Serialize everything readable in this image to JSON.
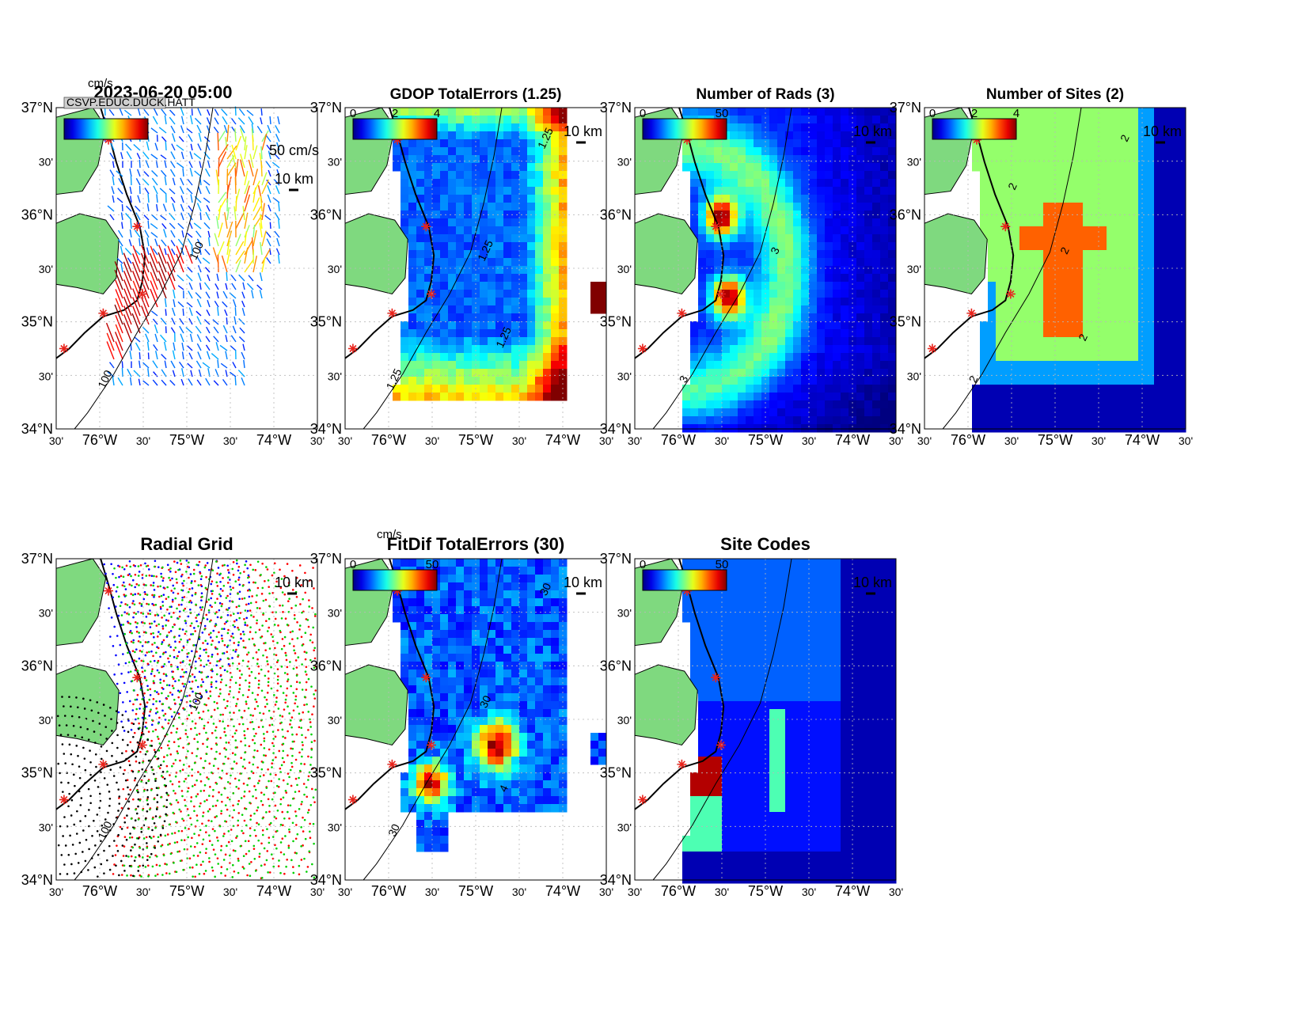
{
  "figure": {
    "panels": [
      {
        "id": "currents",
        "title": "2023-06-20 05:00",
        "colorbar": {
          "units": "cm/s",
          "ticks": [],
          "overlay_text": "CSVP.EDUC.DUCK.HATT"
        },
        "annotations": [
          "50 cm/s",
          "10 km"
        ],
        "contour_labels": [
          "100",
          "100"
        ],
        "layer": "vectors"
      },
      {
        "id": "gdop",
        "title": "GDOP TotalErrors (1.25)",
        "colorbar": {
          "units": "",
          "ticks": [
            "0",
            "2",
            "4"
          ]
        },
        "annotations": [
          "10 km"
        ],
        "contour_labels": [
          "1.25",
          "1.25",
          "1.25",
          "1.25"
        ],
        "layer": "heat"
      },
      {
        "id": "rads",
        "title": "Number of Rads (3)",
        "colorbar": {
          "units": "",
          "ticks": [
            "0",
            "50"
          ]
        },
        "annotations": [
          "10 km"
        ],
        "contour_labels": [
          "3",
          "3"
        ],
        "layer": "heat"
      },
      {
        "id": "sites",
        "title": "Number of Sites (2)",
        "colorbar": {
          "units": "",
          "ticks": [
            "0",
            "2",
            "4"
          ]
        },
        "annotations": [
          "10 km"
        ],
        "contour_labels": [
          "2",
          "2",
          "2",
          "2",
          "2"
        ],
        "layer": "heat"
      },
      {
        "id": "radial",
        "title": "Radial Grid",
        "colorbar": null,
        "annotations": [
          "10 km"
        ],
        "contour_labels": [
          "100",
          "100"
        ],
        "layer": "dots"
      },
      {
        "id": "fitdif",
        "title": "FitDif TotalErrors (30)",
        "colorbar": {
          "units": "cm/s",
          "ticks": [
            "0",
            "50"
          ]
        },
        "annotations": [
          "10 km"
        ],
        "contour_labels": [
          "30",
          "30",
          "30",
          "4"
        ],
        "layer": "heat"
      },
      {
        "id": "codes",
        "title": "Site Codes",
        "colorbar": {
          "units": "",
          "ticks": [
            "0",
            "50"
          ]
        },
        "annotations": [
          "10 km"
        ],
        "contour_labels": [],
        "layer": "heat"
      }
    ],
    "axes": {
      "y_labels": [
        "37°N",
        "30'",
        "36°N",
        "30'",
        "35°N",
        "30'",
        "34°N"
      ],
      "x_labels": [
        "30'",
        "76°W",
        "30'",
        "75°W",
        "30'",
        "74°W",
        "30'"
      ]
    },
    "colors": {
      "land": "#7fd97f",
      "coastline": "#000000",
      "site_marker": "#e8221a",
      "radial_sites": [
        "#0000ff",
        "#ff0000",
        "#00d000",
        "#000000"
      ]
    },
    "site_markers": "asterisk"
  }
}
